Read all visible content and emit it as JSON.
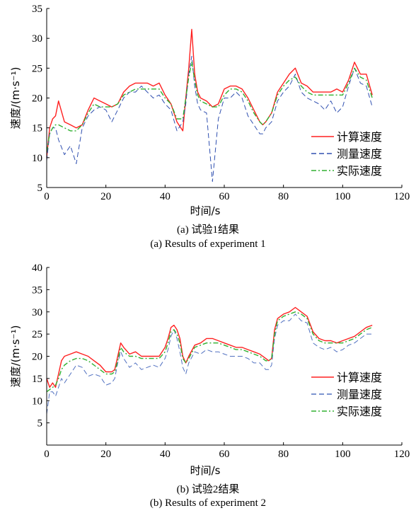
{
  "figure": {
    "caption_a_cn": "(a) 试验1结果",
    "caption_a_en": "(a) Results of experiment 1",
    "caption_b_cn": "(b) 试验2结果",
    "caption_b_en": "(b) Results of experiment 2"
  },
  "chart_data": [
    {
      "type": "line",
      "xlabel": "时间/s",
      "ylabel": "速度/(m·s⁻¹)",
      "xlim": [
        0,
        120
      ],
      "ylim": [
        5,
        35
      ],
      "xticks": [
        "0",
        "20",
        "40",
        "60",
        "80",
        "100",
        "120"
      ],
      "yticks": [
        "5",
        "10",
        "15",
        "20",
        "25",
        "30",
        "35"
      ],
      "grid": false,
      "legend_position": "bottom-right",
      "series": [
        {
          "name": "计算速度",
          "color": "#ff2020",
          "dash": "solid",
          "x": [
            0,
            1,
            2,
            3,
            4,
            6,
            8,
            10,
            12,
            14,
            16,
            18,
            20,
            22,
            24,
            26,
            28,
            30,
            32,
            34,
            36,
            38,
            40,
            42,
            44,
            46,
            47,
            48,
            49,
            50,
            51,
            52,
            54,
            56,
            58,
            60,
            62,
            64,
            66,
            68,
            70,
            72,
            73,
            74,
            76,
            78,
            80,
            82,
            84,
            86,
            88,
            90,
            92,
            94,
            96,
            98,
            100,
            102,
            104,
            106,
            108,
            110
          ],
          "values": [
            10,
            15,
            16.5,
            17,
            19.5,
            16,
            15.5,
            15,
            15.5,
            18,
            20,
            19.5,
            19,
            18.5,
            19,
            21,
            22,
            22.5,
            22.5,
            22.5,
            22,
            22.5,
            20.5,
            19,
            16,
            14.5,
            20,
            25,
            31.5,
            24,
            21,
            20,
            19.5,
            18.5,
            19,
            21.5,
            22,
            22,
            21.5,
            20,
            18,
            16,
            15.5,
            16,
            17.5,
            21,
            22.5,
            24,
            25,
            22.5,
            22,
            21,
            21,
            21,
            21,
            21.5,
            21,
            23,
            26,
            24,
            24,
            20.5
          ]
        },
        {
          "name": "测量速度",
          "color": "#3050b0",
          "dash": "dashed",
          "x": [
            0,
            1,
            2,
            3,
            4,
            6,
            8,
            10,
            12,
            14,
            16,
            18,
            20,
            22,
            24,
            26,
            28,
            30,
            32,
            34,
            36,
            38,
            40,
            42,
            44,
            46,
            47,
            48,
            49,
            50,
            51,
            52,
            54,
            56,
            58,
            60,
            62,
            64,
            66,
            68,
            70,
            72,
            73,
            74,
            76,
            78,
            80,
            82,
            84,
            86,
            88,
            90,
            92,
            94,
            96,
            98,
            100,
            102,
            104,
            106,
            108,
            110
          ],
          "values": [
            9.5,
            14,
            15,
            15,
            13,
            10.5,
            12,
            9,
            15,
            17,
            18,
            18.5,
            18,
            16,
            18,
            20,
            21,
            21,
            22,
            21,
            20,
            20.5,
            19,
            18,
            14.5,
            16,
            19,
            24,
            27,
            22,
            19,
            18,
            17.5,
            6,
            16.5,
            20,
            20,
            21,
            20,
            17,
            15.5,
            14,
            14,
            15,
            16,
            19.5,
            21,
            22,
            24,
            21,
            20,
            19.5,
            19,
            18,
            19.5,
            17.5,
            18.5,
            22,
            25,
            22.5,
            22,
            18.5
          ]
        },
        {
          "name": "实际速度",
          "color": "#30b030",
          "dash": "dashdot",
          "x": [
            0,
            1,
            2,
            3,
            4,
            6,
            8,
            10,
            12,
            14,
            16,
            18,
            20,
            22,
            24,
            26,
            28,
            30,
            32,
            34,
            36,
            38,
            40,
            42,
            44,
            46,
            47,
            48,
            49,
            50,
            51,
            52,
            54,
            56,
            58,
            60,
            62,
            64,
            66,
            68,
            70,
            72,
            73,
            74,
            76,
            78,
            80,
            82,
            84,
            86,
            88,
            90,
            92,
            94,
            96,
            98,
            100,
            102,
            104,
            106,
            108,
            110
          ],
          "values": [
            11,
            14,
            15,
            15.5,
            15.5,
            15,
            14.5,
            14.5,
            15.5,
            17.5,
            19,
            18.5,
            18.5,
            18.5,
            19,
            20.5,
            21,
            21.5,
            21.5,
            21.5,
            21.5,
            21.5,
            20,
            19,
            16.5,
            16.5,
            20,
            23.5,
            26,
            23,
            20.5,
            19.5,
            19,
            18.5,
            18.5,
            20.5,
            21.5,
            21.5,
            21,
            19.5,
            17.5,
            16,
            15.5,
            16,
            17.5,
            20.5,
            22,
            23,
            23.5,
            22,
            21,
            20.5,
            20.5,
            20.5,
            20.5,
            20.5,
            20.5,
            22.5,
            25,
            23.5,
            23,
            20
          ]
        }
      ]
    },
    {
      "type": "line",
      "xlabel": "时间/s",
      "ylabel": "速度/(m·s⁻¹)",
      "xlim": [
        0,
        120
      ],
      "ylim": [
        0,
        40
      ],
      "xticks": [
        "0",
        "20",
        "40",
        "60",
        "80",
        "100",
        "120"
      ],
      "yticks": [
        "5",
        "10",
        "15",
        "20",
        "25",
        "30",
        "35",
        "40"
      ],
      "grid": false,
      "legend_position": "bottom-right",
      "series": [
        {
          "name": "计算速度",
          "color": "#ff2020",
          "dash": "solid",
          "x": [
            0,
            1,
            2,
            3,
            4,
            5,
            6,
            8,
            10,
            12,
            14,
            16,
            18,
            20,
            22,
            23,
            24,
            25,
            26,
            28,
            30,
            32,
            34,
            36,
            38,
            40,
            41,
            42,
            43,
            44,
            45,
            46,
            47,
            48,
            50,
            52,
            54,
            56,
            58,
            60,
            62,
            64,
            66,
            68,
            70,
            72,
            74,
            75,
            76,
            77,
            78,
            80,
            82,
            84,
            86,
            88,
            90,
            92,
            94,
            96,
            98,
            100,
            102,
            104,
            106,
            108,
            110
          ],
          "values": [
            15,
            13,
            14,
            13,
            16,
            19,
            20,
            20.5,
            21,
            20.5,
            20,
            19,
            18,
            16.5,
            16.5,
            17,
            20,
            23,
            22,
            20.5,
            21,
            20,
            20,
            20,
            20,
            22,
            24,
            26.5,
            27,
            26,
            24,
            20,
            18.5,
            20,
            22.5,
            23,
            24,
            24,
            23.5,
            23,
            22.5,
            22,
            22,
            21.5,
            21,
            20.5,
            19.5,
            19,
            19.5,
            26,
            28.5,
            29.5,
            30,
            31,
            30,
            29,
            25.5,
            24,
            23.5,
            23.5,
            23,
            23.5,
            24,
            24.5,
            25.5,
            26.5,
            27
          ]
        },
        {
          "name": "测量速度",
          "color": "#5070c0",
          "dash": "dashed",
          "x": [
            0,
            1,
            2,
            3,
            4,
            5,
            6,
            8,
            10,
            12,
            14,
            16,
            18,
            20,
            22,
            23,
            24,
            25,
            26,
            28,
            30,
            32,
            34,
            36,
            38,
            40,
            41,
            42,
            43,
            44,
            45,
            46,
            47,
            48,
            50,
            52,
            54,
            56,
            58,
            60,
            62,
            64,
            66,
            68,
            70,
            72,
            74,
            75,
            76,
            77,
            78,
            80,
            82,
            84,
            86,
            88,
            90,
            92,
            94,
            96,
            98,
            100,
            102,
            104,
            106,
            108,
            110
          ],
          "values": [
            7,
            12,
            12,
            11,
            13,
            15,
            14,
            16,
            18,
            17.5,
            15.5,
            16,
            15.5,
            13.5,
            14,
            15,
            18.5,
            21,
            19.5,
            17.5,
            18.5,
            17,
            17.5,
            18,
            17.5,
            19.5,
            21.5,
            24.5,
            26,
            24,
            21,
            17.5,
            16,
            18.5,
            21,
            20.5,
            21.5,
            21,
            21,
            20.5,
            20,
            20,
            20,
            19.5,
            18.5,
            18.5,
            17,
            17,
            18,
            24,
            27,
            28,
            28,
            29.5,
            28,
            27.5,
            23,
            22,
            21.5,
            22,
            21,
            21.5,
            22.5,
            23,
            24,
            25,
            25
          ]
        },
        {
          "name": "实际速度",
          "color": "#30b030",
          "dash": "dashdot",
          "x": [
            0,
            1,
            2,
            3,
            4,
            5,
            6,
            8,
            10,
            12,
            14,
            16,
            18,
            20,
            22,
            23,
            24,
            25,
            26,
            28,
            30,
            32,
            34,
            36,
            38,
            40,
            41,
            42,
            43,
            44,
            45,
            46,
            47,
            48,
            50,
            52,
            54,
            56,
            58,
            60,
            62,
            64,
            66,
            68,
            70,
            72,
            74,
            75,
            76,
            77,
            78,
            80,
            82,
            84,
            86,
            88,
            90,
            92,
            94,
            96,
            98,
            100,
            102,
            104,
            106,
            108,
            110
          ],
          "values": [
            12,
            12.5,
            13,
            13.5,
            15,
            17,
            18,
            19,
            19.5,
            19.5,
            19,
            18,
            17,
            16,
            16,
            16.5,
            19,
            22,
            21,
            20,
            20,
            19.5,
            19.5,
            19.5,
            19.5,
            21,
            23,
            25.5,
            26,
            25,
            23,
            19.5,
            18.5,
            19.5,
            22,
            22.5,
            23,
            23,
            23,
            22.5,
            22,
            21.5,
            21.5,
            21,
            20.5,
            20,
            19,
            19,
            19.5,
            25,
            28,
            29,
            29.5,
            30,
            29.5,
            28.5,
            25,
            23.5,
            23,
            23,
            23,
            23,
            23.5,
            24,
            25,
            26,
            26.5
          ]
        }
      ]
    }
  ]
}
